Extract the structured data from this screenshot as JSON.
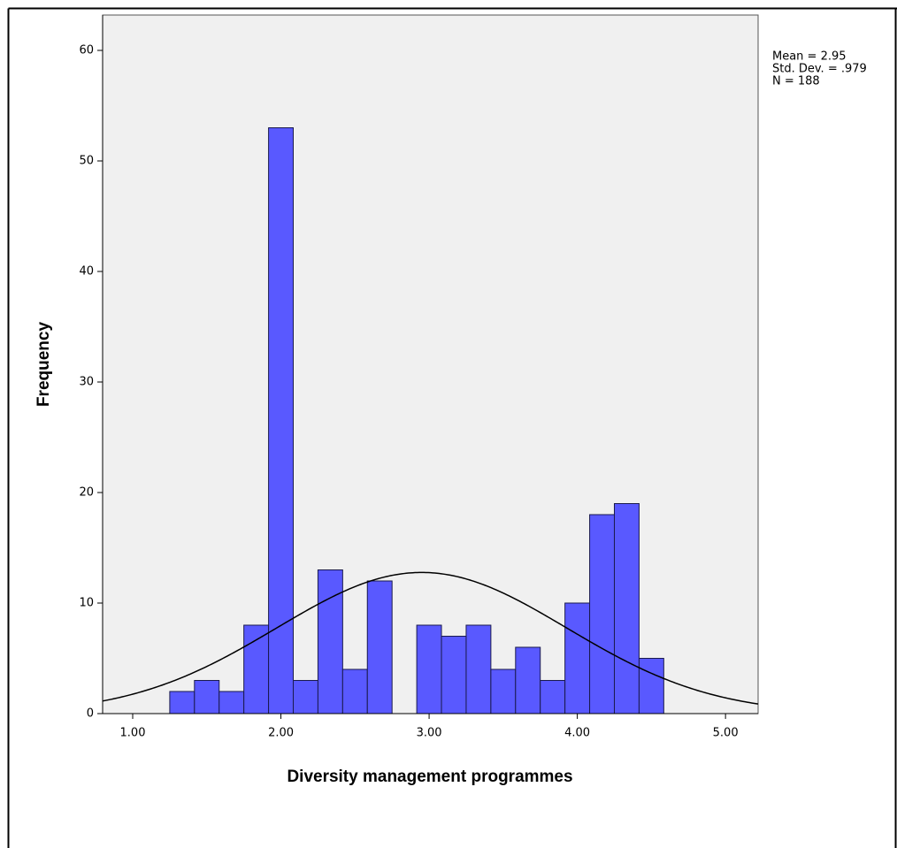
{
  "chart_data": {
    "type": "histogram",
    "x_label": "Diversity management programmes",
    "y_label": "Frequency",
    "bins": [
      1.25,
      1.4167,
      1.5833,
      1.75,
      1.9167,
      2.0833,
      2.25,
      2.4167,
      2.5833,
      2.75,
      2.9167,
      3.0833,
      3.25,
      3.4167,
      3.5833,
      3.75,
      3.9167,
      4.0833,
      4.25,
      4.4167,
      4.5833
    ],
    "values": [
      2,
      3,
      2,
      8,
      53,
      3,
      13,
      4,
      12,
      0,
      8,
      7,
      8,
      4,
      6,
      3,
      10,
      18,
      19,
      5
    ],
    "color": "#5959ff",
    "stats": [
      {
        "value": 2.95,
        "label": "Mean = 2.95"
      },
      {
        "value": 0.979,
        "label": "Std. Dev. = .979"
      },
      {
        "value": 188,
        "label": "N = 188"
      }
    ],
    "xlim": [
      0.797,
      5.22
    ],
    "ylim": [
      0,
      63.2
    ],
    "xticks": [
      {
        "value": 1,
        "label": "1.00"
      },
      {
        "value": 2,
        "label": "2.00"
      },
      {
        "value": 3,
        "label": "3.00"
      },
      {
        "value": 4,
        "label": "4.00"
      },
      {
        "value": 5,
        "label": "5.00"
      }
    ],
    "yticks": [
      0,
      10,
      20,
      30,
      40,
      50,
      60
    ]
  }
}
